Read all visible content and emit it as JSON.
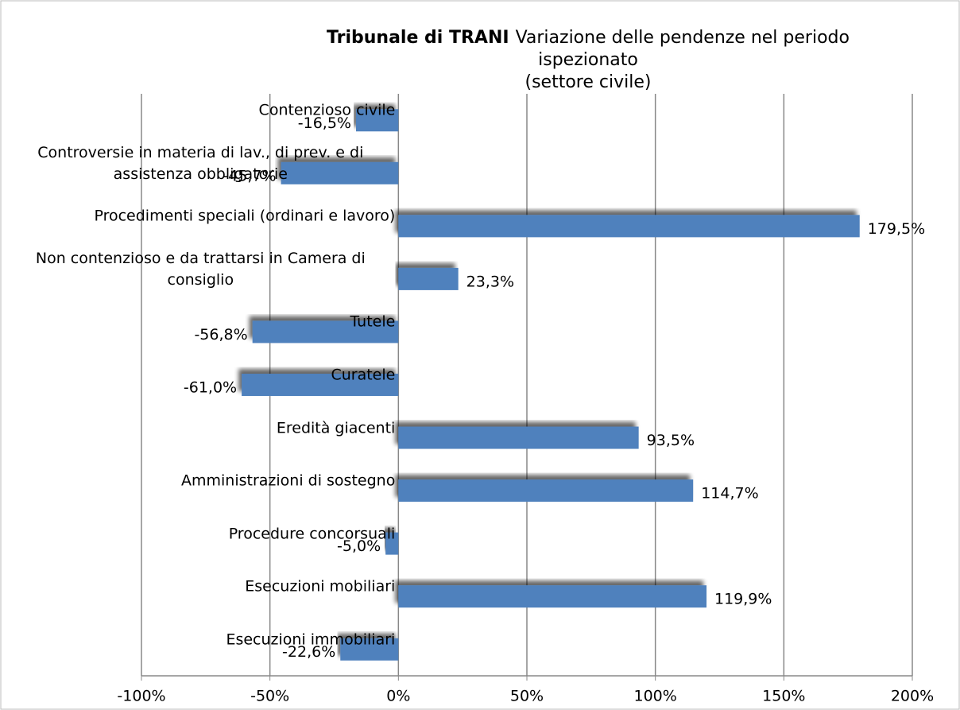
{
  "chart_data": {
    "type": "hbar",
    "title": "Tribunale di TRANI",
    "subtitle": [
      "Variazione delle pendenze nel periodo",
      "ispezionato",
      "(settore civile)"
    ],
    "categories": [
      "Contenzioso civile",
      "Controversie in materia di lav., di prev. e di assistenza obbligatorie",
      "Procedimenti speciali (ordinari e lavoro)",
      "Non contenzioso e da trattarsi in Camera di consiglio",
      "Tutele",
      "Curatele",
      "Eredità giacenti",
      "Amministrazioni di sostegno",
      "Procedure concorsuali",
      "Esecuzioni mobiliari",
      "Esecuzioni immobiliari"
    ],
    "values": [
      -16.5,
      -45.7,
      179.5,
      23.3,
      -56.8,
      -61.0,
      93.5,
      114.7,
      -5.0,
      119.9,
      -22.6
    ],
    "value_labels": [
      "-16,5%",
      "-45,7%",
      "179,5%",
      "23,3%",
      "-56,8%",
      "-61,0%",
      "93,5%",
      "114,7%",
      "-5,0%",
      "119,9%",
      "-22,6%"
    ],
    "color": "#4f81bd",
    "xlim": [
      -100,
      200
    ],
    "xticks": [
      {
        "value": -100,
        "label": "-100%"
      },
      {
        "value": -50,
        "label": "-50%"
      },
      {
        "value": 0,
        "label": "0%"
      },
      {
        "value": 50,
        "label": "50%"
      },
      {
        "value": 100,
        "label": "100%"
      },
      {
        "value": 150,
        "label": "150%"
      },
      {
        "value": 200,
        "label": "200%"
      }
    ],
    "grid": true
  }
}
